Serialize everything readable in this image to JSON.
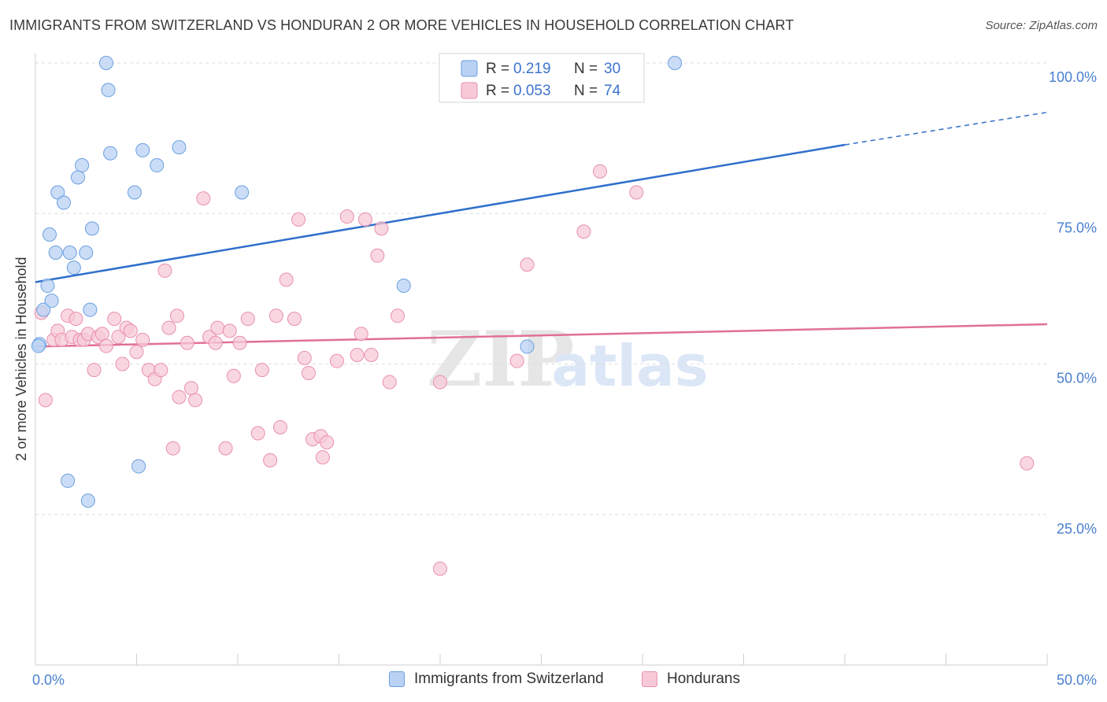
{
  "chart_data": {
    "type": "scatter",
    "title": "IMMIGRANTS FROM SWITZERLAND VS HONDURAN 2 OR MORE VEHICLES IN HOUSEHOLD CORRELATION CHART",
    "source": "Source: ZipAtlas.com",
    "watermark": {
      "zip": "ZIP",
      "atlas": "atlas"
    },
    "ylabel": "2 or more Vehicles in Household",
    "xlim": [
      0,
      50
    ],
    "ylim": [
      0,
      100
    ],
    "x_tick_labels": [
      {
        "value": 0,
        "label": "0.0%"
      },
      {
        "value": 50,
        "label": "50.0%"
      }
    ],
    "y_tick_labels": [
      {
        "value": 25,
        "label": "25.0%"
      },
      {
        "value": 50,
        "label": "50.0%"
      },
      {
        "value": 75,
        "label": "75.0%"
      },
      {
        "value": 100,
        "label": "100.0%"
      }
    ],
    "legend": {
      "r_label": "R =",
      "n_label": "N =",
      "entries": [
        {
          "r": "0.219",
          "n": "30"
        },
        {
          "r": "0.053",
          "n": "74"
        }
      ]
    },
    "series": [
      {
        "name": "Immigrants from Switzerland",
        "color": "#6a9fe0",
        "fill": "#b9d1f3",
        "trend": {
          "x0": 0,
          "y0": 63.6,
          "x1": 40,
          "y1": 86.4,
          "dash_to_x": 50,
          "dash_to_y": 91.8,
          "color": "#2f6fcb"
        },
        "points": [
          [
            0.2,
            53.3
          ],
          [
            0.4,
            59.0
          ],
          [
            0.6,
            63.0
          ],
          [
            0.7,
            71.5
          ],
          [
            0.8,
            60.5
          ],
          [
            1.0,
            68.5
          ],
          [
            1.1,
            78.5
          ],
          [
            1.4,
            76.8
          ],
          [
            1.6,
            30.6
          ],
          [
            1.7,
            68.5
          ],
          [
            1.9,
            66.0
          ],
          [
            2.1,
            81.0
          ],
          [
            2.3,
            83.0
          ],
          [
            2.5,
            68.5
          ],
          [
            2.6,
            27.3
          ],
          [
            2.7,
            59.0
          ],
          [
            2.8,
            72.5
          ],
          [
            3.5,
            100.0
          ],
          [
            3.6,
            95.5
          ],
          [
            3.7,
            85.0
          ],
          [
            4.9,
            78.5
          ],
          [
            5.1,
            33.0
          ],
          [
            5.3,
            85.5
          ],
          [
            6.0,
            83.0
          ],
          [
            7.1,
            86.0
          ],
          [
            10.2,
            78.5
          ],
          [
            18.2,
            63.0
          ],
          [
            24.3,
            52.9
          ],
          [
            31.6,
            100.0
          ],
          [
            0.15,
            53.0
          ]
        ]
      },
      {
        "name": "Hondurans",
        "color": "#e98fae",
        "fill": "#f7c9d7",
        "trend": {
          "x0": 0,
          "y0": 52.9,
          "x1": 50,
          "y1": 56.6,
          "color": "#e06f98"
        },
        "points": [
          [
            0.3,
            58.5
          ],
          [
            0.5,
            44.0
          ],
          [
            0.9,
            54.0
          ],
          [
            1.1,
            55.5
          ],
          [
            1.3,
            54.0
          ],
          [
            1.6,
            58.0
          ],
          [
            1.8,
            54.5
          ],
          [
            2.0,
            57.5
          ],
          [
            2.2,
            54.0
          ],
          [
            2.4,
            54.0
          ],
          [
            2.6,
            55.0
          ],
          [
            2.9,
            49.0
          ],
          [
            3.1,
            54.5
          ],
          [
            3.3,
            55.0
          ],
          [
            3.5,
            53.0
          ],
          [
            3.9,
            57.5
          ],
          [
            4.1,
            54.5
          ],
          [
            4.3,
            50.0
          ],
          [
            4.5,
            56.0
          ],
          [
            4.7,
            55.5
          ],
          [
            5.0,
            52.0
          ],
          [
            5.3,
            54.0
          ],
          [
            5.6,
            49.0
          ],
          [
            5.9,
            47.5
          ],
          [
            6.2,
            49.0
          ],
          [
            6.4,
            65.5
          ],
          [
            6.6,
            56.0
          ],
          [
            7.0,
            58.0
          ],
          [
            7.1,
            44.5
          ],
          [
            6.8,
            36.0
          ],
          [
            7.5,
            53.5
          ],
          [
            7.7,
            46.0
          ],
          [
            7.9,
            44.0
          ],
          [
            8.3,
            77.5
          ],
          [
            8.6,
            54.5
          ],
          [
            8.9,
            53.5
          ],
          [
            9.0,
            56.0
          ],
          [
            9.6,
            55.5
          ],
          [
            9.4,
            36.0
          ],
          [
            9.8,
            48.0
          ],
          [
            10.1,
            53.5
          ],
          [
            10.5,
            57.5
          ],
          [
            11.0,
            38.5
          ],
          [
            11.2,
            49.0
          ],
          [
            11.6,
            34.0
          ],
          [
            11.9,
            58.0
          ],
          [
            12.1,
            39.5
          ],
          [
            12.4,
            64.0
          ],
          [
            12.8,
            57.5
          ],
          [
            13.0,
            74.0
          ],
          [
            13.3,
            51.0
          ],
          [
            13.5,
            48.5
          ],
          [
            13.7,
            37.5
          ],
          [
            14.1,
            38.0
          ],
          [
            14.2,
            34.5
          ],
          [
            14.4,
            37.0
          ],
          [
            14.9,
            50.5
          ],
          [
            15.4,
            74.5
          ],
          [
            15.9,
            51.5
          ],
          [
            16.1,
            55.0
          ],
          [
            16.3,
            74.0
          ],
          [
            16.6,
            51.5
          ],
          [
            16.9,
            68.0
          ],
          [
            17.1,
            72.5
          ],
          [
            17.5,
            47.0
          ],
          [
            17.9,
            58.0
          ],
          [
            20.0,
            47.0
          ],
          [
            20.0,
            16.0
          ],
          [
            23.8,
            50.5
          ],
          [
            24.3,
            66.5
          ],
          [
            27.1,
            72.0
          ],
          [
            27.9,
            82.0
          ],
          [
            29.7,
            78.5
          ],
          [
            49.0,
            33.5
          ]
        ]
      }
    ]
  }
}
